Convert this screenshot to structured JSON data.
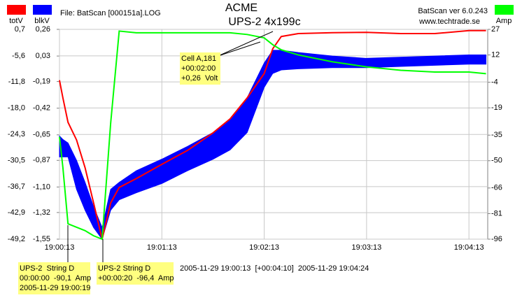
{
  "header": {
    "file": "File: BatScan [000151a].LOG",
    "title": "ACME",
    "subtitle": "UPS-2 4x199c",
    "version": "BatScan ver 6.0.243",
    "website": "www.techtrade.se"
  },
  "chart_data": {
    "type": "line",
    "x": [
      "19:00:13",
      "19:00:15",
      "19:00:18",
      "19:00:23",
      "19:00:28",
      "19:00:33",
      "19:00:38",
      "19:00:43",
      "19:00:48",
      "19:00:58",
      "19:01:13",
      "19:01:28",
      "19:01:43",
      "19:01:53",
      "19:02:03",
      "19:02:13",
      "19:02:18",
      "19:02:23",
      "19:02:33",
      "19:02:53",
      "19:03:13",
      "19:03:33",
      "19:03:53",
      "19:04:13",
      "19:04:23"
    ],
    "xlim": [
      "19:00:13",
      "19:04:24"
    ],
    "xticks": [
      "19:00:13",
      "19:01:13",
      "19:02:13",
      "19:03:13",
      "19:04:13"
    ],
    "grid": true,
    "series": [
      {
        "name": "totV",
        "color": "#ff0000",
        "axis": "y",
        "values": [
          -11.4,
          -15.6,
          -21.4,
          -25.6,
          -32.2,
          -40.6,
          -49.2,
          -40.6,
          -36.9,
          -34.8,
          -31.4,
          -28.1,
          -23.9,
          -20.6,
          -15.6,
          -9.8,
          -3.9,
          -1.0,
          -0.3,
          -0.1,
          0.0,
          -0.3,
          -0.3,
          0.4,
          0.4
        ]
      },
      {
        "name": "blkV",
        "color": "#0000ff",
        "axis": "y2",
        "values": [
          -0.66,
          -0.69,
          -0.72,
          -0.87,
          -1.06,
          -1.27,
          -1.45,
          -1.12,
          -1.06,
          -0.96,
          -0.86,
          -0.75,
          -0.63,
          -0.51,
          -0.33,
          -0.03,
          0.08,
          0.08,
          0.06,
          0.03,
          0.01,
          0.02,
          0.03,
          0.04,
          0.04
        ],
        "low": [
          -0.84,
          -0.84,
          -0.84,
          -1.12,
          -1.3,
          -1.45,
          -1.55,
          -1.3,
          -1.21,
          -1.15,
          -1.07,
          -0.96,
          -0.86,
          -0.78,
          -0.63,
          -0.24,
          -0.12,
          -0.09,
          -0.08,
          -0.07,
          -0.07,
          -0.06,
          -0.05,
          -0.04,
          -0.04
        ]
      },
      {
        "name": "Amp",
        "color": "#00ff00",
        "axis": "y3",
        "values": [
          -36,
          -54,
          -87,
          -89,
          -91,
          -94,
          -96,
          -28,
          26,
          25,
          25,
          25,
          25,
          25,
          24,
          22,
          18,
          15,
          12,
          8,
          5,
          3,
          2,
          2,
          1
        ]
      }
    ],
    "ylim": [
      -49.2,
      0.7
    ],
    "yticks": [
      {
        "value": 0.7,
        "label": "0,7"
      },
      {
        "value": -5.6,
        "label": "-5,6"
      },
      {
        "value": -11.8,
        "label": "-11,8"
      },
      {
        "value": -18.0,
        "label": "-18,0"
      },
      {
        "value": -24.3,
        "label": "-24,3"
      },
      {
        "value": -30.5,
        "label": "-30,5"
      },
      {
        "value": -36.7,
        "label": "-36,7"
      },
      {
        "value": -42.9,
        "label": "-42,9"
      },
      {
        "value": -49.2,
        "label": "-49,2"
      }
    ],
    "y2lim": [
      -1.55,
      0.26
    ],
    "y2ticks": [
      {
        "value": 0.26,
        "label": "0,26"
      },
      {
        "value": 0.03,
        "label": "0,03"
      },
      {
        "value": -0.19,
        "label": "-0,19"
      },
      {
        "value": -0.42,
        "label": "-0,42"
      },
      {
        "value": -0.65,
        "label": "-0,65"
      },
      {
        "value": -0.87,
        "label": "-0,87"
      },
      {
        "value": -1.1,
        "label": "-1,10"
      },
      {
        "value": -1.32,
        "label": "-1,32"
      },
      {
        "value": -1.55,
        "label": "-1,55"
      }
    ],
    "y3lim": [
      -96,
      27
    ],
    "y3ticks": [
      27,
      12,
      -4,
      -19,
      -35,
      -50,
      -66,
      -81,
      -96
    ],
    "annotations": [
      {
        "lines": [
          "Cell A,181",
          "+00:02:00",
          "+0,26  Volt"
        ]
      },
      {
        "lines": [
          "UPS-2  String D",
          "00:00:00  -90,1  Amp",
          "2005-11-29 19:00:19"
        ]
      },
      {
        "lines": [
          "UPS-2 String D",
          "+00:00:20  -96,4  Amp"
        ]
      }
    ],
    "footer": "2005-11-29 19:00:13  [+00:04:10]  2005-11-29 19:04:24"
  }
}
